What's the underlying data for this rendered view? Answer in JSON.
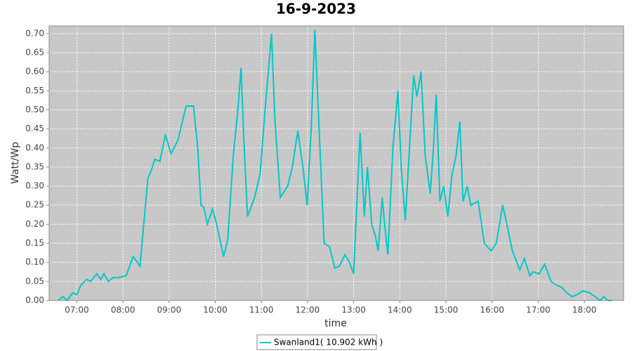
{
  "chart_data": {
    "type": "line",
    "title": "16-9-2023",
    "x_label": "time",
    "y_label": "Watt/Wp",
    "x": [
      6.59,
      6.7,
      6.79,
      6.91,
      7.0,
      7.09,
      7.21,
      7.3,
      7.43,
      7.52,
      7.59,
      7.68,
      7.79,
      7.91,
      8.07,
      8.22,
      8.37,
      8.45,
      8.54,
      8.61,
      8.69,
      8.8,
      8.92,
      9.04,
      9.19,
      9.37,
      9.53,
      9.62,
      9.69,
      9.75,
      9.83,
      9.94,
      10.03,
      10.18,
      10.27,
      10.39,
      10.49,
      10.56,
      10.62,
      10.7,
      10.85,
      10.97,
      11.08,
      11.22,
      11.29,
      11.41,
      11.57,
      11.67,
      11.79,
      11.9,
      11.99,
      12.08,
      12.16,
      12.25,
      12.36,
      12.48,
      12.59,
      12.69,
      12.81,
      12.91,
      13.0,
      13.14,
      13.23,
      13.3,
      13.39,
      13.47,
      13.53,
      13.62,
      13.67,
      13.74,
      13.85,
      13.96,
      14.03,
      14.12,
      14.2,
      14.3,
      14.37,
      14.46,
      14.55,
      14.66,
      14.73,
      14.79,
      14.87,
      14.95,
      15.04,
      15.13,
      15.22,
      15.3,
      15.37,
      15.46,
      15.54,
      15.7,
      15.83,
      15.98,
      16.09,
      16.23,
      16.32,
      16.44,
      16.6,
      16.7,
      16.82,
      16.89,
      17.02,
      17.14,
      17.28,
      17.4,
      17.5,
      17.62,
      17.73,
      17.84,
      17.96,
      18.11,
      18.23,
      18.34,
      18.42,
      18.51,
      18.6
    ],
    "series": [
      {
        "name": "Swanland1( 10.902 kWh )",
        "color": "#00c8c8",
        "values": [
          0.0,
          0.01,
          0.0,
          0.02,
          0.015,
          0.04,
          0.055,
          0.05,
          0.07,
          0.055,
          0.07,
          0.05,
          0.06,
          0.06,
          0.065,
          0.115,
          0.09,
          0.2,
          0.32,
          0.34,
          0.37,
          0.365,
          0.435,
          0.385,
          0.42,
          0.51,
          0.51,
          0.4,
          0.25,
          0.245,
          0.2,
          0.24,
          0.2,
          0.115,
          0.16,
          0.38,
          0.5,
          0.61,
          0.42,
          0.22,
          0.27,
          0.33,
          0.5,
          0.7,
          0.48,
          0.27,
          0.3,
          0.35,
          0.445,
          0.35,
          0.25,
          0.45,
          0.71,
          0.45,
          0.15,
          0.14,
          0.085,
          0.09,
          0.12,
          0.1,
          0.07,
          0.44,
          0.22,
          0.35,
          0.2,
          0.17,
          0.13,
          0.27,
          0.2,
          0.12,
          0.4,
          0.55,
          0.35,
          0.21,
          0.38,
          0.59,
          0.535,
          0.6,
          0.38,
          0.28,
          0.4,
          0.54,
          0.26,
          0.3,
          0.22,
          0.33,
          0.38,
          0.47,
          0.26,
          0.3,
          0.25,
          0.26,
          0.15,
          0.13,
          0.15,
          0.25,
          0.2,
          0.13,
          0.08,
          0.11,
          0.065,
          0.075,
          0.07,
          0.095,
          0.05,
          0.04,
          0.035,
          0.02,
          0.01,
          0.015,
          0.025,
          0.02,
          0.01,
          0.0,
          0.01,
          0.0,
          0.0
        ]
      }
    ],
    "xlim": [
      6.4,
      18.85
    ],
    "ylim": [
      0,
      0.72
    ],
    "xticks": [
      {
        "value": 7,
        "label": "07:00"
      },
      {
        "value": 8,
        "label": "08:00"
      },
      {
        "value": 9,
        "label": "09:00"
      },
      {
        "value": 10,
        "label": "10:00"
      },
      {
        "value": 11,
        "label": "11:00"
      },
      {
        "value": 12,
        "label": "12:00"
      },
      {
        "value": 13,
        "label": "13:00"
      },
      {
        "value": 14,
        "label": "14:00"
      },
      {
        "value": 15,
        "label": "15:00"
      },
      {
        "value": 16,
        "label": "16:00"
      },
      {
        "value": 17,
        "label": "17:00"
      },
      {
        "value": 18,
        "label": "18:00"
      }
    ],
    "yticks": [
      {
        "value": 0,
        "label": "0.00"
      },
      {
        "value": 0.05,
        "label": "0.05"
      },
      {
        "value": 0.1,
        "label": "0.10"
      },
      {
        "value": 0.15,
        "label": "0.15"
      },
      {
        "value": 0.2,
        "label": "0.20"
      },
      {
        "value": 0.25,
        "label": "0.25"
      },
      {
        "value": 0.3,
        "label": "0.30"
      },
      {
        "value": 0.35,
        "label": "0.35"
      },
      {
        "value": 0.4,
        "label": "0.40"
      },
      {
        "value": 0.45,
        "label": "0.45"
      },
      {
        "value": 0.5,
        "label": "0.50"
      },
      {
        "value": 0.55,
        "label": "0.55"
      },
      {
        "value": 0.6,
        "label": "0.60"
      },
      {
        "value": 0.65,
        "label": "0.65"
      },
      {
        "value": 0.7,
        "label": "0.70"
      }
    ],
    "grid": true
  }
}
